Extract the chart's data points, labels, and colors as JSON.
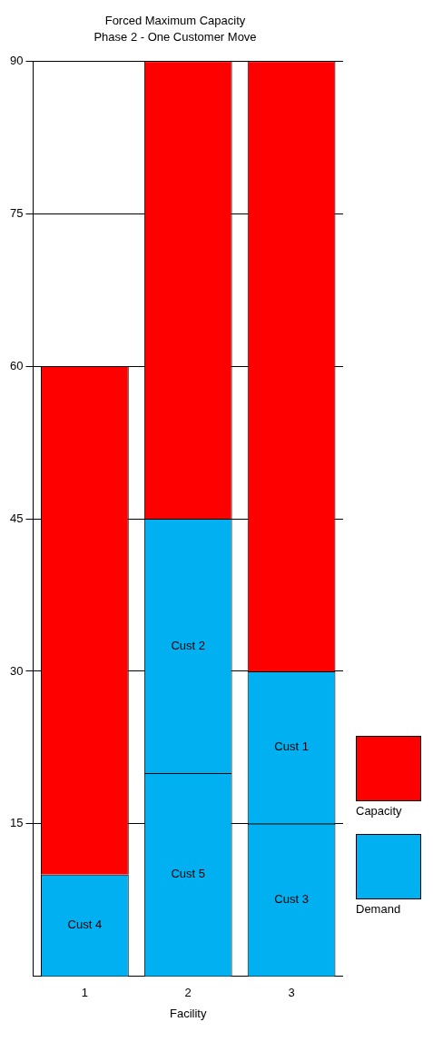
{
  "chart_data": {
    "type": "bar",
    "title": "Forced Maximum Capacity",
    "subtitle": "Phase 2 - One Customer Move",
    "xlabel": "Facility",
    "categories": [
      "1",
      "2",
      "3"
    ],
    "stacked": true,
    "series": [
      {
        "name": "Demand",
        "color": "#00b0f0",
        "values": [
          10,
          20,
          15
        ],
        "value_labels": [
          "Cust 4",
          "Cust 5",
          "Cust 3"
        ]
      },
      {
        "color": "#00b0f0",
        "values": [
          null,
          25,
          15
        ],
        "value_labels": [
          null,
          "Cust 2",
          "Cust 1"
        ]
      },
      {
        "name": "Capacity",
        "color": "#ff0000",
        "values": [
          50,
          45,
          60
        ]
      }
    ],
    "ylim": [
      0,
      90
    ],
    "yticks": [
      15,
      30,
      45,
      60,
      75,
      90
    ],
    "grid": "y",
    "legend": "right"
  }
}
